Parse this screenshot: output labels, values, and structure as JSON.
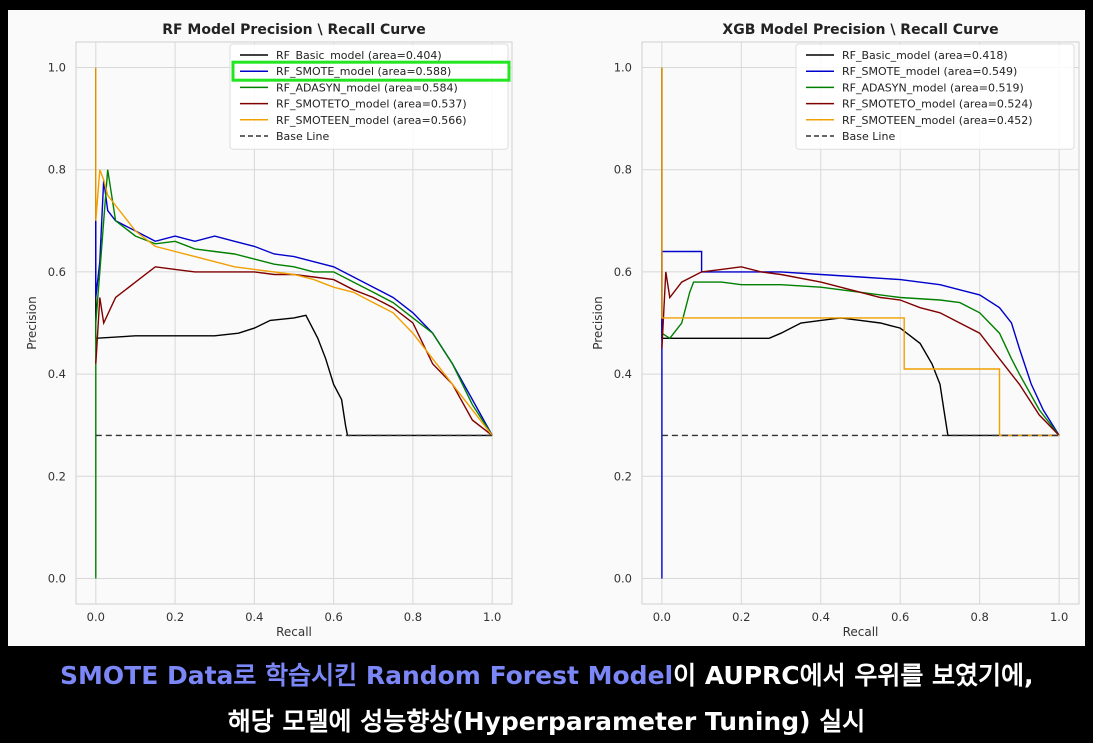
{
  "chart_data": [
    {
      "type": "line",
      "title": "RF Model Precision \\ Recall Curve",
      "xlabel": "Recall",
      "ylabel": "Precision",
      "xlim": [
        -0.05,
        1.05
      ],
      "ylim": [
        -0.05,
        1.05
      ],
      "xticks": [
        "0.0",
        "0.2",
        "0.4",
        "0.6",
        "0.8",
        "1.0"
      ],
      "yticks": [
        "0.0",
        "0.2",
        "0.4",
        "0.6",
        "0.8",
        "1.0"
      ],
      "grid": true,
      "legend_position": "top-right",
      "highlighted_legend_entry": "RF_SMOTE_model (area=0.588)",
      "series": [
        {
          "name": "RF_Basic_model (area=0.404)",
          "color": "#000000",
          "dash": false,
          "points": [
            [
              0.0,
              1.0
            ],
            [
              0.0,
              0.47
            ],
            [
              0.1,
              0.475
            ],
            [
              0.3,
              0.475
            ],
            [
              0.36,
              0.48
            ],
            [
              0.4,
              0.49
            ],
            [
              0.44,
              0.505
            ],
            [
              0.5,
              0.51
            ],
            [
              0.53,
              0.515
            ],
            [
              0.56,
              0.47
            ],
            [
              0.58,
              0.43
            ],
            [
              0.6,
              0.38
            ],
            [
              0.62,
              0.35
            ],
            [
              0.63,
              0.3
            ],
            [
              0.635,
              0.28
            ],
            [
              1.0,
              0.28
            ]
          ]
        },
        {
          "name": "RF_SMOTE_model (area=0.588)",
          "color": "#0000cc",
          "dash": false,
          "points": [
            [
              0.0,
              1.0
            ],
            [
              0.0,
              0.55
            ],
            [
              0.01,
              0.62
            ],
            [
              0.02,
              0.78
            ],
            [
              0.03,
              0.72
            ],
            [
              0.05,
              0.7
            ],
            [
              0.1,
              0.68
            ],
            [
              0.15,
              0.66
            ],
            [
              0.2,
              0.67
            ],
            [
              0.25,
              0.66
            ],
            [
              0.3,
              0.67
            ],
            [
              0.35,
              0.66
            ],
            [
              0.4,
              0.65
            ],
            [
              0.45,
              0.635
            ],
            [
              0.5,
              0.63
            ],
            [
              0.55,
              0.62
            ],
            [
              0.6,
              0.61
            ],
            [
              0.65,
              0.59
            ],
            [
              0.7,
              0.57
            ],
            [
              0.75,
              0.55
            ],
            [
              0.8,
              0.52
            ],
            [
              0.85,
              0.48
            ],
            [
              0.9,
              0.42
            ],
            [
              0.95,
              0.35
            ],
            [
              1.0,
              0.28
            ]
          ]
        },
        {
          "name": "RF_ADASYN_model (area=0.584)",
          "color": "#008000",
          "dash": false,
          "points": [
            [
              0.0,
              0.0
            ],
            [
              0.0,
              0.5
            ],
            [
              0.01,
              0.6
            ],
            [
              0.02,
              0.7
            ],
            [
              0.03,
              0.8
            ],
            [
              0.05,
              0.7
            ],
            [
              0.1,
              0.67
            ],
            [
              0.15,
              0.655
            ],
            [
              0.2,
              0.66
            ],
            [
              0.25,
              0.645
            ],
            [
              0.3,
              0.64
            ],
            [
              0.35,
              0.635
            ],
            [
              0.4,
              0.625
            ],
            [
              0.45,
              0.615
            ],
            [
              0.5,
              0.61
            ],
            [
              0.55,
              0.6
            ],
            [
              0.6,
              0.6
            ],
            [
              0.65,
              0.58
            ],
            [
              0.7,
              0.56
            ],
            [
              0.75,
              0.54
            ],
            [
              0.8,
              0.51
            ],
            [
              0.85,
              0.48
            ],
            [
              0.9,
              0.42
            ],
            [
              0.95,
              0.34
            ],
            [
              1.0,
              0.28
            ]
          ]
        },
        {
          "name": "RF_SMOTETO_model (area=0.537)",
          "color": "#800000",
          "dash": false,
          "points": [
            [
              0.0,
              0.42
            ],
            [
              0.01,
              0.55
            ],
            [
              0.02,
              0.5
            ],
            [
              0.05,
              0.55
            ],
            [
              0.1,
              0.58
            ],
            [
              0.15,
              0.61
            ],
            [
              0.2,
              0.605
            ],
            [
              0.25,
              0.6
            ],
            [
              0.3,
              0.6
            ],
            [
              0.35,
              0.6
            ],
            [
              0.4,
              0.6
            ],
            [
              0.45,
              0.595
            ],
            [
              0.5,
              0.595
            ],
            [
              0.55,
              0.59
            ],
            [
              0.6,
              0.585
            ],
            [
              0.65,
              0.565
            ],
            [
              0.7,
              0.55
            ],
            [
              0.75,
              0.53
            ],
            [
              0.8,
              0.5
            ],
            [
              0.85,
              0.42
            ],
            [
              0.9,
              0.38
            ],
            [
              0.95,
              0.31
            ],
            [
              1.0,
              0.28
            ]
          ]
        },
        {
          "name": "RF_SMOTEEN_model (area=0.566)",
          "color": "#f0a000",
          "dash": false,
          "points": [
            [
              0.0,
              1.0
            ],
            [
              0.0,
              0.7
            ],
            [
              0.01,
              0.8
            ],
            [
              0.02,
              0.78
            ],
            [
              0.03,
              0.75
            ],
            [
              0.05,
              0.73
            ],
            [
              0.1,
              0.68
            ],
            [
              0.15,
              0.65
            ],
            [
              0.2,
              0.64
            ],
            [
              0.25,
              0.63
            ],
            [
              0.3,
              0.62
            ],
            [
              0.35,
              0.61
            ],
            [
              0.4,
              0.605
            ],
            [
              0.45,
              0.6
            ],
            [
              0.5,
              0.595
            ],
            [
              0.55,
              0.585
            ],
            [
              0.6,
              0.57
            ],
            [
              0.65,
              0.56
            ],
            [
              0.7,
              0.54
            ],
            [
              0.75,
              0.52
            ],
            [
              0.8,
              0.48
            ],
            [
              0.85,
              0.43
            ],
            [
              0.9,
              0.38
            ],
            [
              0.95,
              0.33
            ],
            [
              1.0,
              0.28
            ]
          ]
        },
        {
          "name": "Base Line",
          "color": "#333333",
          "dash": true,
          "points": [
            [
              0.0,
              0.28
            ],
            [
              1.0,
              0.28
            ]
          ]
        }
      ]
    },
    {
      "type": "line",
      "title": "XGB Model Precision \\ Recall Curve",
      "xlabel": "Recall",
      "ylabel": "Precision",
      "xlim": [
        -0.05,
        1.05
      ],
      "ylim": [
        -0.05,
        1.05
      ],
      "xticks": [
        "0.0",
        "0.2",
        "0.4",
        "0.6",
        "0.8",
        "1.0"
      ],
      "yticks": [
        "0.0",
        "0.2",
        "0.4",
        "0.6",
        "0.8",
        "1.0"
      ],
      "grid": true,
      "legend_position": "top-right",
      "series": [
        {
          "name": "RF_Basic_model (area=0.418)",
          "color": "#000000",
          "dash": false,
          "points": [
            [
              0.0,
              1.0
            ],
            [
              0.0,
              0.47
            ],
            [
              0.1,
              0.47
            ],
            [
              0.2,
              0.47
            ],
            [
              0.27,
              0.47
            ],
            [
              0.3,
              0.48
            ],
            [
              0.35,
              0.5
            ],
            [
              0.4,
              0.505
            ],
            [
              0.45,
              0.51
            ],
            [
              0.5,
              0.505
            ],
            [
              0.55,
              0.5
            ],
            [
              0.6,
              0.49
            ],
            [
              0.65,
              0.46
            ],
            [
              0.68,
              0.42
            ],
            [
              0.7,
              0.38
            ],
            [
              0.71,
              0.33
            ],
            [
              0.72,
              0.28
            ],
            [
              1.0,
              0.28
            ]
          ]
        },
        {
          "name": "RF_SMOTE_model (area=0.549)",
          "color": "#0000cc",
          "dash": false,
          "points": [
            [
              0.0,
              0.0
            ],
            [
              0.0,
              0.64
            ],
            [
              0.1,
              0.64
            ],
            [
              0.1,
              0.6
            ],
            [
              0.2,
              0.6
            ],
            [
              0.3,
              0.6
            ],
            [
              0.4,
              0.595
            ],
            [
              0.5,
              0.59
            ],
            [
              0.6,
              0.585
            ],
            [
              0.7,
              0.575
            ],
            [
              0.75,
              0.565
            ],
            [
              0.8,
              0.555
            ],
            [
              0.85,
              0.53
            ],
            [
              0.88,
              0.5
            ],
            [
              0.9,
              0.45
            ],
            [
              0.93,
              0.38
            ],
            [
              0.96,
              0.33
            ],
            [
              1.0,
              0.28
            ]
          ]
        },
        {
          "name": "RF_ADASYN_model (area=0.519)",
          "color": "#008000",
          "dash": false,
          "points": [
            [
              0.0,
              0.48
            ],
            [
              0.02,
              0.47
            ],
            [
              0.05,
              0.5
            ],
            [
              0.07,
              0.56
            ],
            [
              0.08,
              0.58
            ],
            [
              0.15,
              0.58
            ],
            [
              0.2,
              0.575
            ],
            [
              0.3,
              0.575
            ],
            [
              0.4,
              0.57
            ],
            [
              0.5,
              0.56
            ],
            [
              0.6,
              0.55
            ],
            [
              0.7,
              0.545
            ],
            [
              0.75,
              0.54
            ],
            [
              0.8,
              0.52
            ],
            [
              0.85,
              0.48
            ],
            [
              0.88,
              0.43
            ],
            [
              0.9,
              0.4
            ],
            [
              0.95,
              0.33
            ],
            [
              1.0,
              0.28
            ]
          ]
        },
        {
          "name": "RF_SMOTETO_model (area=0.524)",
          "color": "#800000",
          "dash": false,
          "points": [
            [
              0.0,
              0.45
            ],
            [
              0.01,
              0.6
            ],
            [
              0.02,
              0.55
            ],
            [
              0.05,
              0.58
            ],
            [
              0.1,
              0.6
            ],
            [
              0.15,
              0.605
            ],
            [
              0.2,
              0.61
            ],
            [
              0.25,
              0.6
            ],
            [
              0.3,
              0.595
            ],
            [
              0.4,
              0.58
            ],
            [
              0.5,
              0.56
            ],
            [
              0.55,
              0.55
            ],
            [
              0.6,
              0.545
            ],
            [
              0.65,
              0.53
            ],
            [
              0.7,
              0.52
            ],
            [
              0.75,
              0.5
            ],
            [
              0.8,
              0.48
            ],
            [
              0.85,
              0.43
            ],
            [
              0.9,
              0.38
            ],
            [
              0.95,
              0.32
            ],
            [
              1.0,
              0.28
            ]
          ]
        },
        {
          "name": "RF_SMOTEEN_model (area=0.452)",
          "color": "#f0a000",
          "dash": false,
          "points": [
            [
              0.0,
              1.0
            ],
            [
              0.0,
              0.51
            ],
            [
              0.61,
              0.51
            ],
            [
              0.61,
              0.41
            ],
            [
              0.85,
              0.41
            ],
            [
              0.85,
              0.28
            ],
            [
              1.0,
              0.28
            ]
          ]
        },
        {
          "name": "Base Line",
          "color": "#333333",
          "dash": true,
          "points": [
            [
              0.0,
              0.28
            ],
            [
              1.0,
              0.28
            ]
          ]
        }
      ]
    }
  ],
  "caption": {
    "line1_highlight": "SMOTE Data로 학습시킨 Random Forest Model",
    "line1_rest": "이 AUPRC에서 우위를 보였기에,",
    "line2": "해당 모델에 성능향상(Hyperparameter Tuning) 실시"
  }
}
